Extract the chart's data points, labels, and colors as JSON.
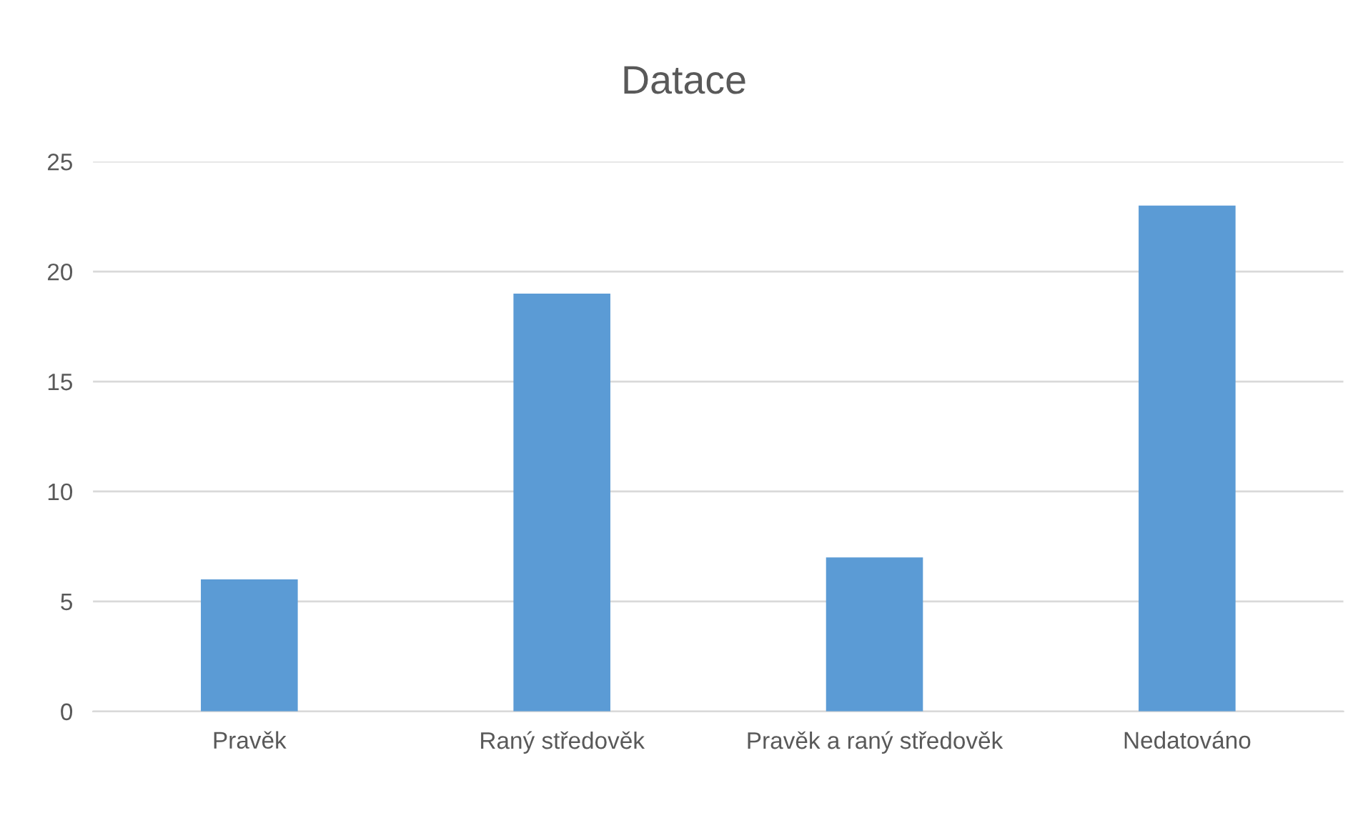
{
  "chart_data": {
    "type": "bar",
    "title": "Datace",
    "categories": [
      "Pravěk",
      "Raný středověk",
      "Pravěk a raný středověk",
      "Nedatováno"
    ],
    "values": [
      6,
      19,
      7,
      23
    ],
    "color": "#5b9bd5",
    "ylim": [
      0,
      25
    ],
    "yticks": [
      0,
      5,
      10,
      15,
      20,
      25
    ],
    "grid": "y"
  }
}
